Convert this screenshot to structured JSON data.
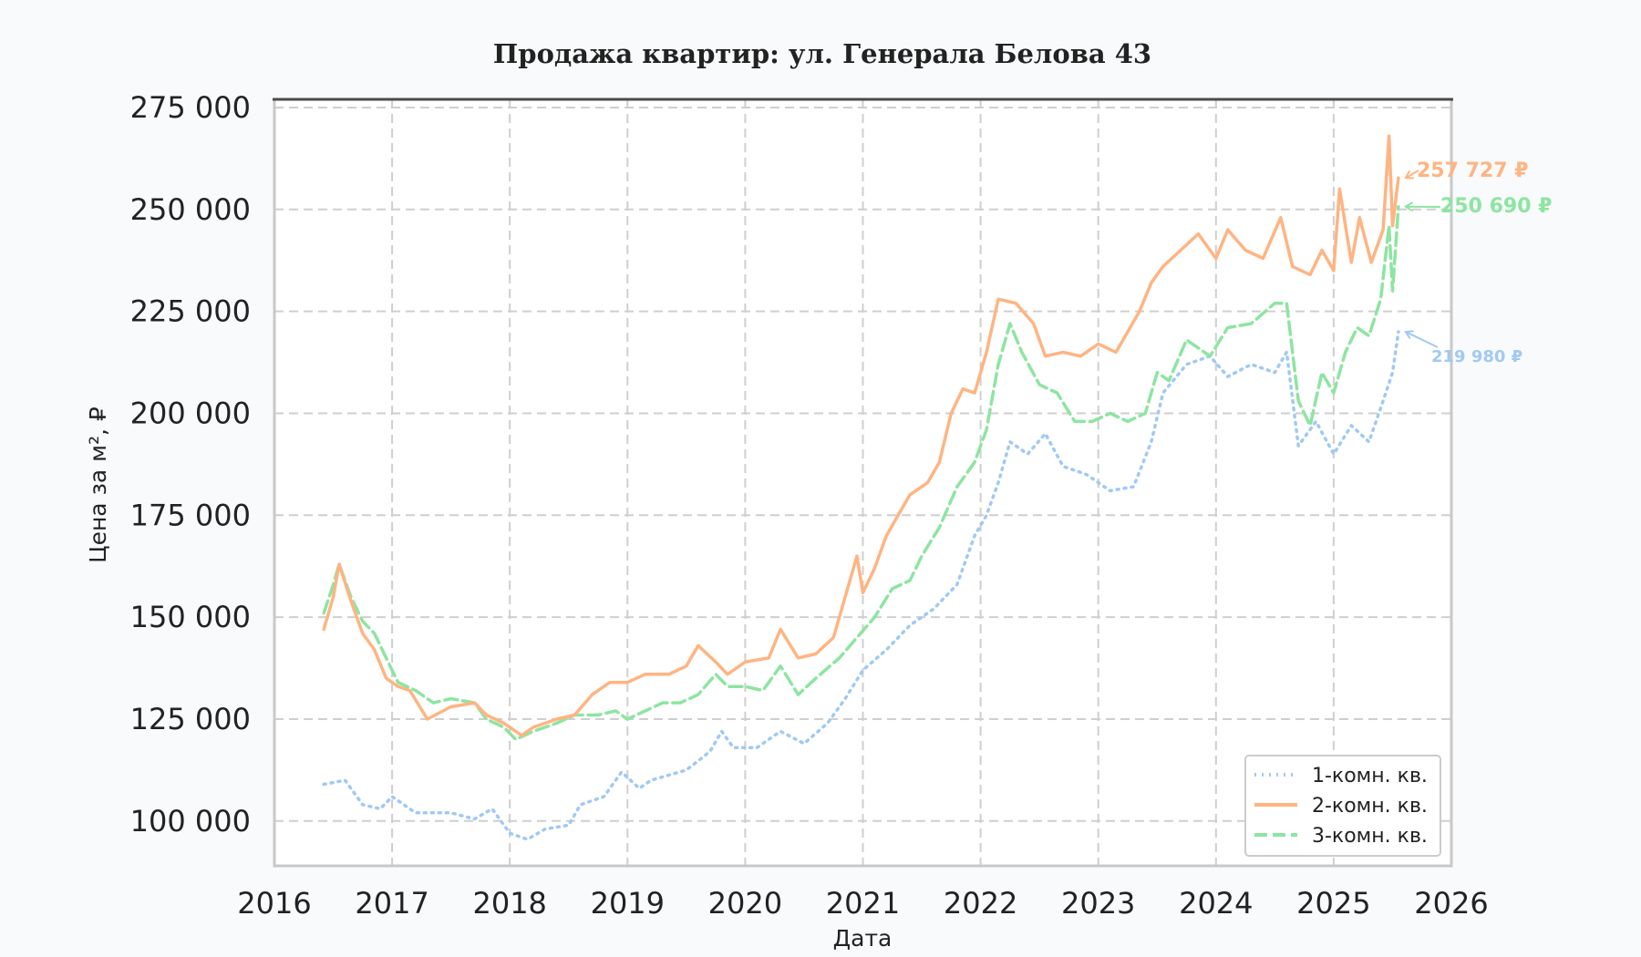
{
  "chart_data": {
    "type": "line",
    "title": "Продажа квартир: ул. Генерала Белова 43",
    "xlabel": "Дата",
    "ylabel": "Цена за м², ₽",
    "xlim": [
      2016,
      2026
    ],
    "ylim": [
      89000,
      277000
    ],
    "x_ticks": [
      "2016",
      "2017",
      "2018",
      "2019",
      "2020",
      "2021",
      "2022",
      "2023",
      "2024",
      "2025",
      "2026"
    ],
    "y_ticks": [
      "100 000",
      "125 000",
      "150 000",
      "175 000",
      "200 000",
      "225 000",
      "250 000",
      "275 000"
    ],
    "grid": true,
    "legend_position": "bottom-right",
    "series": [
      {
        "name": "1-комн. кв.",
        "color": "#a1c9f4",
        "style": "dotted",
        "points": [
          [
            2016.42,
            109000
          ],
          [
            2016.6,
            110000
          ],
          [
            2016.75,
            104000
          ],
          [
            2016.9,
            103000
          ],
          [
            2017.0,
            106000
          ],
          [
            2017.2,
            102000
          ],
          [
            2017.5,
            102000
          ],
          [
            2017.7,
            100500
          ],
          [
            2017.85,
            103000
          ],
          [
            2018.0,
            97000
          ],
          [
            2018.15,
            95500
          ],
          [
            2018.3,
            98000
          ],
          [
            2018.5,
            99000
          ],
          [
            2018.6,
            104000
          ],
          [
            2018.8,
            106000
          ],
          [
            2018.95,
            112000
          ],
          [
            2019.1,
            108000
          ],
          [
            2019.2,
            110000
          ],
          [
            2019.5,
            112500
          ],
          [
            2019.7,
            117000
          ],
          [
            2019.8,
            122000
          ],
          [
            2019.9,
            118000
          ],
          [
            2020.1,
            118000
          ],
          [
            2020.3,
            122000
          ],
          [
            2020.5,
            119000
          ],
          [
            2020.7,
            124000
          ],
          [
            2020.85,
            130000
          ],
          [
            2021.0,
            137000
          ],
          [
            2021.2,
            142000
          ],
          [
            2021.4,
            148000
          ],
          [
            2021.6,
            152000
          ],
          [
            2021.8,
            158000
          ],
          [
            2021.95,
            170000
          ],
          [
            2022.05,
            175000
          ],
          [
            2022.15,
            183000
          ],
          [
            2022.25,
            193000
          ],
          [
            2022.4,
            190000
          ],
          [
            2022.55,
            195000
          ],
          [
            2022.7,
            187000
          ],
          [
            2022.9,
            185000
          ],
          [
            2023.1,
            181000
          ],
          [
            2023.3,
            182000
          ],
          [
            2023.45,
            193000
          ],
          [
            2023.55,
            205000
          ],
          [
            2023.75,
            212000
          ],
          [
            2023.95,
            214000
          ],
          [
            2024.1,
            209000
          ],
          [
            2024.3,
            212000
          ],
          [
            2024.5,
            210000
          ],
          [
            2024.6,
            215000
          ],
          [
            2024.7,
            192000
          ],
          [
            2024.85,
            198000
          ],
          [
            2025.0,
            190000
          ],
          [
            2025.15,
            197000
          ],
          [
            2025.3,
            193000
          ],
          [
            2025.42,
            203000
          ],
          [
            2025.5,
            210000
          ],
          [
            2025.55,
            219980
          ]
        ]
      },
      {
        "name": "2-комн. кв.",
        "color": "#ffb482",
        "style": "solid",
        "points": [
          [
            2016.42,
            147000
          ],
          [
            2016.5,
            155000
          ],
          [
            2016.55,
            163000
          ],
          [
            2016.65,
            154000
          ],
          [
            2016.75,
            146000
          ],
          [
            2016.85,
            142000
          ],
          [
            2016.95,
            135000
          ],
          [
            2017.05,
            133000
          ],
          [
            2017.15,
            132000
          ],
          [
            2017.3,
            125000
          ],
          [
            2017.5,
            128000
          ],
          [
            2017.7,
            129000
          ],
          [
            2017.8,
            126000
          ],
          [
            2017.95,
            124000
          ],
          [
            2018.1,
            121000
          ],
          [
            2018.2,
            123000
          ],
          [
            2018.4,
            125000
          ],
          [
            2018.55,
            126000
          ],
          [
            2018.7,
            131000
          ],
          [
            2018.85,
            134000
          ],
          [
            2019.0,
            134000
          ],
          [
            2019.15,
            136000
          ],
          [
            2019.35,
            136000
          ],
          [
            2019.5,
            138000
          ],
          [
            2019.6,
            143000
          ],
          [
            2019.75,
            139000
          ],
          [
            2019.85,
            136000
          ],
          [
            2020.0,
            139000
          ],
          [
            2020.2,
            140000
          ],
          [
            2020.3,
            147000
          ],
          [
            2020.45,
            140000
          ],
          [
            2020.6,
            141000
          ],
          [
            2020.75,
            145000
          ],
          [
            2020.85,
            155000
          ],
          [
            2020.95,
            165000
          ],
          [
            2021.0,
            156000
          ],
          [
            2021.1,
            162000
          ],
          [
            2021.2,
            170000
          ],
          [
            2021.3,
            175000
          ],
          [
            2021.4,
            180000
          ],
          [
            2021.55,
            183000
          ],
          [
            2021.65,
            188000
          ],
          [
            2021.75,
            200000
          ],
          [
            2021.85,
            206000
          ],
          [
            2021.95,
            205000
          ],
          [
            2022.05,
            215000
          ],
          [
            2022.15,
            228000
          ],
          [
            2022.3,
            227000
          ],
          [
            2022.45,
            222000
          ],
          [
            2022.55,
            214000
          ],
          [
            2022.7,
            215000
          ],
          [
            2022.85,
            214000
          ],
          [
            2023.0,
            217000
          ],
          [
            2023.15,
            215000
          ],
          [
            2023.25,
            220000
          ],
          [
            2023.35,
            225000
          ],
          [
            2023.45,
            232000
          ],
          [
            2023.55,
            236000
          ],
          [
            2023.7,
            240000
          ],
          [
            2023.85,
            244000
          ],
          [
            2024.0,
            238000
          ],
          [
            2024.1,
            245000
          ],
          [
            2024.25,
            240000
          ],
          [
            2024.4,
            238000
          ],
          [
            2024.55,
            248000
          ],
          [
            2024.65,
            236000
          ],
          [
            2024.8,
            234000
          ],
          [
            2024.9,
            240000
          ],
          [
            2025.0,
            235000
          ],
          [
            2025.05,
            255000
          ],
          [
            2025.15,
            237000
          ],
          [
            2025.22,
            248000
          ],
          [
            2025.32,
            237000
          ],
          [
            2025.42,
            245000
          ],
          [
            2025.47,
            268000
          ],
          [
            2025.5,
            246000
          ],
          [
            2025.55,
            257727
          ]
        ]
      },
      {
        "name": "3-комн. кв.",
        "color": "#8de5a1",
        "style": "dashed",
        "points": [
          [
            2016.42,
            151000
          ],
          [
            2016.5,
            158000
          ],
          [
            2016.55,
            163000
          ],
          [
            2016.65,
            155000
          ],
          [
            2016.75,
            149000
          ],
          [
            2016.85,
            146000
          ],
          [
            2016.95,
            140000
          ],
          [
            2017.05,
            134000
          ],
          [
            2017.2,
            132000
          ],
          [
            2017.35,
            129000
          ],
          [
            2017.5,
            130000
          ],
          [
            2017.7,
            129000
          ],
          [
            2017.8,
            125000
          ],
          [
            2017.95,
            123000
          ],
          [
            2018.05,
            120000
          ],
          [
            2018.2,
            122000
          ],
          [
            2018.4,
            124000
          ],
          [
            2018.55,
            126000
          ],
          [
            2018.75,
            126000
          ],
          [
            2018.9,
            127000
          ],
          [
            2019.0,
            125000
          ],
          [
            2019.15,
            127000
          ],
          [
            2019.3,
            129000
          ],
          [
            2019.45,
            129000
          ],
          [
            2019.6,
            131000
          ],
          [
            2019.75,
            136000
          ],
          [
            2019.85,
            133000
          ],
          [
            2020.0,
            133000
          ],
          [
            2020.15,
            132000
          ],
          [
            2020.3,
            138000
          ],
          [
            2020.45,
            131000
          ],
          [
            2020.6,
            135000
          ],
          [
            2020.8,
            140000
          ],
          [
            2020.95,
            145000
          ],
          [
            2021.1,
            150000
          ],
          [
            2021.25,
            157000
          ],
          [
            2021.4,
            159000
          ],
          [
            2021.5,
            165000
          ],
          [
            2021.65,
            172000
          ],
          [
            2021.8,
            182000
          ],
          [
            2021.95,
            188000
          ],
          [
            2022.05,
            196000
          ],
          [
            2022.15,
            212000
          ],
          [
            2022.25,
            222000
          ],
          [
            2022.35,
            215000
          ],
          [
            2022.5,
            207000
          ],
          [
            2022.65,
            205000
          ],
          [
            2022.8,
            198000
          ],
          [
            2022.95,
            198000
          ],
          [
            2023.1,
            200000
          ],
          [
            2023.25,
            198000
          ],
          [
            2023.4,
            200000
          ],
          [
            2023.5,
            210000
          ],
          [
            2023.6,
            208000
          ],
          [
            2023.75,
            218000
          ],
          [
            2023.95,
            214000
          ],
          [
            2024.1,
            221000
          ],
          [
            2024.3,
            222000
          ],
          [
            2024.5,
            227000
          ],
          [
            2024.6,
            227000
          ],
          [
            2024.7,
            203000
          ],
          [
            2024.8,
            197000
          ],
          [
            2024.9,
            210000
          ],
          [
            2025.0,
            205000
          ],
          [
            2025.1,
            215000
          ],
          [
            2025.2,
            221000
          ],
          [
            2025.3,
            219000
          ],
          [
            2025.4,
            228000
          ],
          [
            2025.47,
            246000
          ],
          [
            2025.5,
            230000
          ],
          [
            2025.55,
            250690
          ]
        ]
      }
    ],
    "annotations": [
      {
        "text": "257 727 ₽",
        "series": 1
      },
      {
        "text": "250 690 ₽",
        "series": 2
      },
      {
        "text": "219 980 ₽",
        "series": 0
      }
    ]
  }
}
